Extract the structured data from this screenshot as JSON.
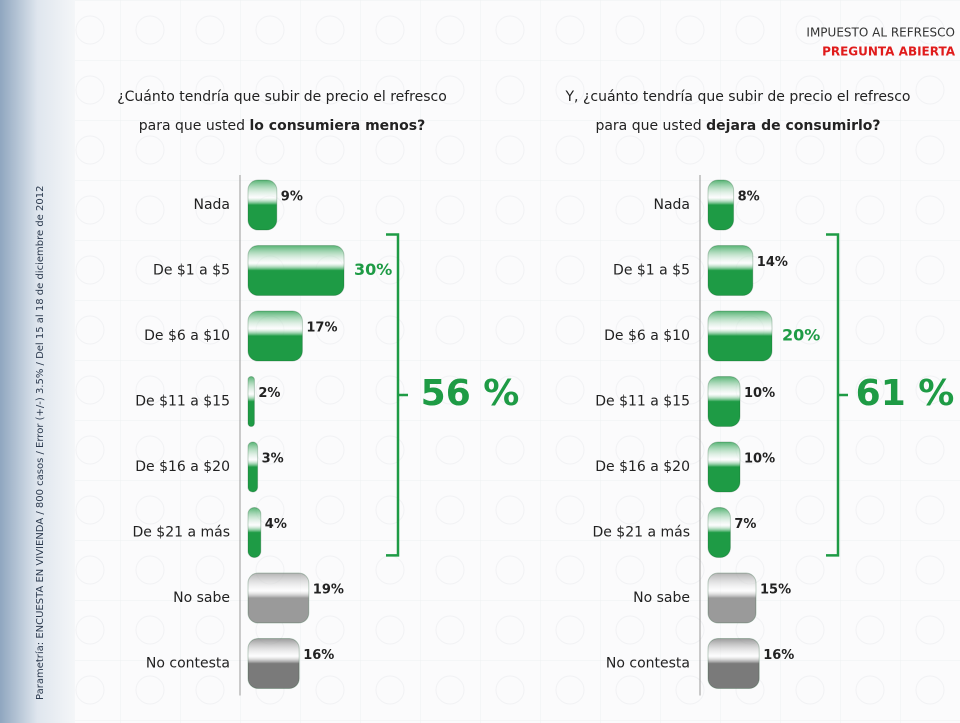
{
  "header": {
    "title": "IMPUESTO AL REFRESCO",
    "subtitle": "PREGUNTA ABIERTA"
  },
  "source": "Parametría: ENCUESTA EN VIVIENDA / 800 casos / Error (+/-) 3.5% / Del 15 al 18 de diciembre de 2012",
  "chart_data": [
    {
      "type": "bar",
      "orientation": "horizontal",
      "title": [
        "¿Cuánto tendría que subir de precio el refresco",
        "para que usted ",
        "lo consumiera menos?"
      ],
      "categories": [
        "Nada",
        "De $1 a $5",
        "De $6 a $10",
        "De $11 a $15",
        "De $16 a $20",
        "De $21 a más",
        "No sabe",
        "No contesta"
      ],
      "values": [
        9,
        30,
        17,
        2,
        3,
        4,
        19,
        16
      ],
      "value_labels": [
        "9%",
        "30%",
        "17%",
        "2%",
        "3%",
        "4%",
        "19%",
        "16%"
      ],
      "colors": [
        "#1e9b45",
        "#1e9b45",
        "#1e9b45",
        "#1e9b45",
        "#1e9b45",
        "#1e9b45",
        "#9a9a9a",
        "#7a7a7a"
      ],
      "highlight": 1,
      "xlim": [
        0,
        100
      ],
      "annotation": "56 %"
    },
    {
      "type": "bar",
      "orientation": "horizontal",
      "title": [
        "Y, ¿cuánto tendría que subir de precio el refresco",
        "para que usted ",
        "dejara de consumirlo?"
      ],
      "categories": [
        "Nada",
        "De $1 a $5",
        "De $6 a $10",
        "De $11 a $15",
        "De $16 a $20",
        "De $21 a más",
        "No sabe",
        "No contesta"
      ],
      "values": [
        8,
        14,
        20,
        10,
        10,
        7,
        15,
        16
      ],
      "value_labels": [
        "8%",
        "14%",
        "20%",
        "10%",
        "10%",
        "7%",
        "15%",
        "16%"
      ],
      "colors": [
        "#1e9b45",
        "#1e9b45",
        "#1e9b45",
        "#1e9b45",
        "#1e9b45",
        "#1e9b45",
        "#9a9a9a",
        "#7a7a7a"
      ],
      "highlight": 2,
      "xlim": [
        0,
        100
      ],
      "annotation": "61 %"
    }
  ]
}
